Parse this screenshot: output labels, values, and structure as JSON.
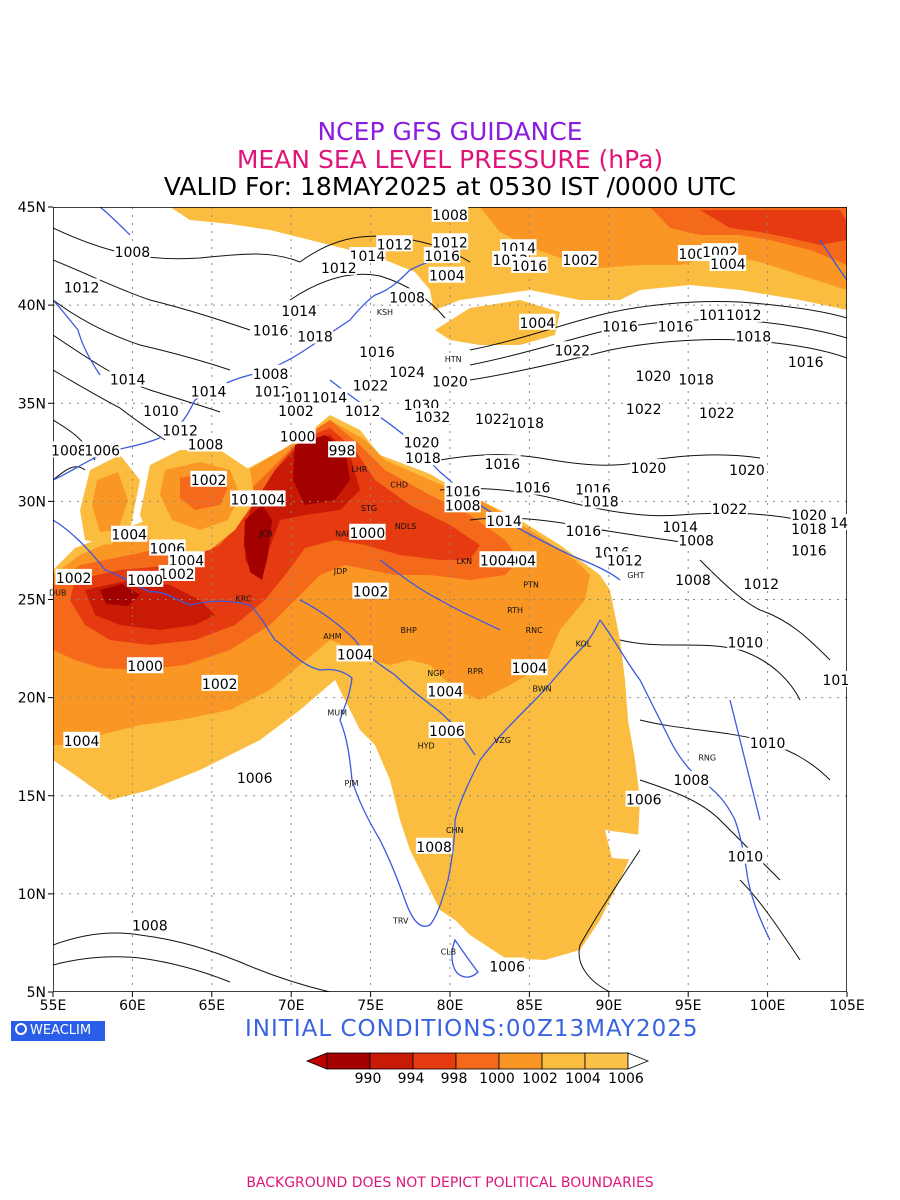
{
  "header": {
    "line1": "NCEP GFS GUIDANCE",
    "line2": "MEAN SEA LEVEL PRESSURE (hPa)",
    "line3": "VALID For: 18MAY2025 at 0530 IST /0000 UTC"
  },
  "axes": {
    "lon_labels": [
      "55E",
      "60E",
      "65E",
      "70E",
      "75E",
      "80E",
      "85E",
      "90E",
      "95E",
      "100E",
      "105E"
    ],
    "lat_labels": [
      "45N",
      "40N",
      "35N",
      "30N",
      "25N",
      "20N",
      "15N",
      "10N",
      "5N"
    ],
    "lon_range": [
      55,
      105
    ],
    "lat_range": [
      5,
      45
    ],
    "grid": true
  },
  "colors": {
    "p990": "#a30000",
    "p994": "#c81a05",
    "p998": "#e63a10",
    "p1000": "#f56a1a",
    "p1002": "#fa9624",
    "p1004": "#fbbd3f",
    "above": "#ffffff",
    "coast": "#3a5ae0"
  },
  "legend": {
    "labels": [
      "990",
      "994",
      "998",
      "1000",
      "1002",
      "1004",
      "1006"
    ]
  },
  "cities": [
    {
      "name": "DUB",
      "lon": 55.3,
      "lat": 25.2
    },
    {
      "name": "KRC",
      "lon": 67.0,
      "lat": 24.9
    },
    {
      "name": "JCB",
      "lon": 68.4,
      "lat": 28.2
    },
    {
      "name": "SRG",
      "lon": 73.5,
      "lat": 32.3
    },
    {
      "name": "LHR",
      "lon": 74.3,
      "lat": 31.5
    },
    {
      "name": "STG",
      "lon": 74.9,
      "lat": 29.5
    },
    {
      "name": "NAI",
      "lon": 73.2,
      "lat": 28.2
    },
    {
      "name": "NDLS",
      "lon": 77.2,
      "lat": 28.6
    },
    {
      "name": "CHD",
      "lon": 76.8,
      "lat": 30.7
    },
    {
      "name": "JDP",
      "lon": 73.1,
      "lat": 26.3
    },
    {
      "name": "AHM",
      "lon": 72.6,
      "lat": 23.0
    },
    {
      "name": "BHP",
      "lon": 77.4,
      "lat": 23.3
    },
    {
      "name": "LKN",
      "lon": 80.9,
      "lat": 26.8
    },
    {
      "name": "PTN",
      "lon": 85.1,
      "lat": 25.6
    },
    {
      "name": "RTH",
      "lon": 84.1,
      "lat": 24.3
    },
    {
      "name": "RNC",
      "lon": 85.3,
      "lat": 23.3
    },
    {
      "name": "KOL",
      "lon": 88.4,
      "lat": 22.6
    },
    {
      "name": "NGP",
      "lon": 79.1,
      "lat": 21.1
    },
    {
      "name": "RPR",
      "lon": 81.6,
      "lat": 21.2
    },
    {
      "name": "BWN",
      "lon": 85.8,
      "lat": 20.3
    },
    {
      "name": "MUM",
      "lon": 72.9,
      "lat": 19.1
    },
    {
      "name": "HYD",
      "lon": 78.5,
      "lat": 17.4
    },
    {
      "name": "VZG",
      "lon": 83.3,
      "lat": 17.7
    },
    {
      "name": "PJM",
      "lon": 73.8,
      "lat": 15.5
    },
    {
      "name": "CHN",
      "lon": 80.3,
      "lat": 13.1
    },
    {
      "name": "TRV",
      "lon": 76.9,
      "lat": 8.5
    },
    {
      "name": "CLB",
      "lon": 79.9,
      "lat": 6.9
    },
    {
      "name": "GHT",
      "lon": 91.7,
      "lat": 26.1
    },
    {
      "name": "HTN",
      "lon": 80.2,
      "lat": 37.1
    },
    {
      "name": "KSH",
      "lon": 75.9,
      "lat": 39.5
    },
    {
      "name": "RNG",
      "lon": 96.2,
      "lat": 16.8
    }
  ],
  "contour_labels": [
    {
      "v": "1008",
      "lon": 80.0,
      "lat": 44.6
    },
    {
      "v": "1008",
      "lon": 60.0,
      "lat": 42.7
    },
    {
      "v": "1012",
      "lon": 56.8,
      "lat": 40.9
    },
    {
      "v": "1014",
      "lon": 74.8,
      "lat": 42.5
    },
    {
      "v": "1012",
      "lon": 76.5,
      "lat": 43.1
    },
    {
      "v": "1012",
      "lon": 73.0,
      "lat": 41.9
    },
    {
      "v": "1016",
      "lon": 79.5,
      "lat": 42.5
    },
    {
      "v": "1012",
      "lon": 80.0,
      "lat": 43.2
    },
    {
      "v": "1014",
      "lon": 84.3,
      "lat": 42.9
    },
    {
      "v": "1012",
      "lon": 83.8,
      "lat": 42.3
    },
    {
      "v": "1016",
      "lon": 85.0,
      "lat": 42.0
    },
    {
      "v": "1004",
      "lon": 79.8,
      "lat": 41.5
    },
    {
      "v": "1008",
      "lon": 77.3,
      "lat": 40.4
    },
    {
      "v": "1002",
      "lon": 88.2,
      "lat": 42.3
    },
    {
      "v": "1004",
      "lon": 95.5,
      "lat": 42.6
    },
    {
      "v": "1002",
      "lon": 97.0,
      "lat": 42.7
    },
    {
      "v": "1004",
      "lon": 97.5,
      "lat": 42.1
    },
    {
      "v": "1004",
      "lon": 85.5,
      "lat": 39.1
    },
    {
      "v": "1016",
      "lon": 90.7,
      "lat": 38.9
    },
    {
      "v": "1016",
      "lon": 94.2,
      "lat": 38.9
    },
    {
      "v": "1014",
      "lon": 96.8,
      "lat": 39.5
    },
    {
      "v": "1012",
      "lon": 98.5,
      "lat": 39.5
    },
    {
      "v": "1018",
      "lon": 99.1,
      "lat": 38.4
    },
    {
      "v": "1016",
      "lon": 102.4,
      "lat": 37.1
    },
    {
      "v": "1014",
      "lon": 70.5,
      "lat": 39.7
    },
    {
      "v": "1016",
      "lon": 68.7,
      "lat": 38.7
    },
    {
      "v": "1018",
      "lon": 71.5,
      "lat": 38.4
    },
    {
      "v": "1016",
      "lon": 75.4,
      "lat": 37.6
    },
    {
      "v": "1022",
      "lon": 87.7,
      "lat": 37.7
    },
    {
      "v": "1020",
      "lon": 92.8,
      "lat": 36.4
    },
    {
      "v": "1018",
      "lon": 95.5,
      "lat": 36.2
    },
    {
      "v": "1014",
      "lon": 59.7,
      "lat": 36.2
    },
    {
      "v": "1008",
      "lon": 68.7,
      "lat": 36.5
    },
    {
      "v": "1014",
      "lon": 64.8,
      "lat": 35.6
    },
    {
      "v": "1012",
      "lon": 68.8,
      "lat": 35.6
    },
    {
      "v": "1016",
      "lon": 70.7,
      "lat": 35.3
    },
    {
      "v": "1014",
      "lon": 72.4,
      "lat": 35.3
    },
    {
      "v": "1022",
      "lon": 75.0,
      "lat": 35.9
    },
    {
      "v": "1024",
      "lon": 77.3,
      "lat": 36.6
    },
    {
      "v": "1020",
      "lon": 80.0,
      "lat": 36.1
    },
    {
      "v": "1010",
      "lon": 61.8,
      "lat": 34.6
    },
    {
      "v": "1002",
      "lon": 70.3,
      "lat": 34.6
    },
    {
      "v": "1012",
      "lon": 74.5,
      "lat": 34.6
    },
    {
      "v": "1030",
      "lon": 78.2,
      "lat": 34.9
    },
    {
      "v": "1032",
      "lon": 78.9,
      "lat": 34.3
    },
    {
      "v": "1022",
      "lon": 82.7,
      "lat": 34.2
    },
    {
      "v": "1018",
      "lon": 84.8,
      "lat": 34.0
    },
    {
      "v": "1022",
      "lon": 92.2,
      "lat": 34.7
    },
    {
      "v": "1022",
      "lon": 96.8,
      "lat": 34.5
    },
    {
      "v": "1012",
      "lon": 63.0,
      "lat": 33.6
    },
    {
      "v": "1008",
      "lon": 64.6,
      "lat": 32.9
    },
    {
      "v": "1000",
      "lon": 70.4,
      "lat": 33.3
    },
    {
      "v": "1020",
      "lon": 78.2,
      "lat": 33.0
    },
    {
      "v": "1008",
      "lon": 56.0,
      "lat": 32.6
    },
    {
      "v": "1006",
      "lon": 58.1,
      "lat": 32.6
    },
    {
      "v": "998",
      "lon": 73.2,
      "lat": 32.6
    },
    {
      "v": "1018",
      "lon": 78.3,
      "lat": 32.2
    },
    {
      "v": "1016",
      "lon": 83.3,
      "lat": 31.9
    },
    {
      "v": "1020",
      "lon": 92.5,
      "lat": 31.7
    },
    {
      "v": "1020",
      "lon": 98.7,
      "lat": 31.6
    },
    {
      "v": "1016",
      "lon": 85.2,
      "lat": 30.7
    },
    {
      "v": "1002",
      "lon": 64.8,
      "lat": 31.1
    },
    {
      "v": "1016",
      "lon": 80.8,
      "lat": 30.5
    },
    {
      "v": "1016",
      "lon": 89.0,
      "lat": 30.6
    },
    {
      "v": "1018",
      "lon": 89.5,
      "lat": 30.0
    },
    {
      "v": "1006",
      "lon": 67.3,
      "lat": 30.1
    },
    {
      "v": "1004",
      "lon": 68.5,
      "lat": 30.1
    },
    {
      "v": "1008",
      "lon": 80.8,
      "lat": 29.8
    },
    {
      "v": "1022",
      "lon": 97.6,
      "lat": 29.6
    },
    {
      "v": "1020",
      "lon": 102.6,
      "lat": 29.3
    },
    {
      "v": "1014",
      "lon": 83.4,
      "lat": 29.0
    },
    {
      "v": "1014",
      "lon": 94.5,
      "lat": 28.7
    },
    {
      "v": "1018",
      "lon": 102.6,
      "lat": 28.6
    },
    {
      "v": "14",
      "lon": 104.5,
      "lat": 28.9
    },
    {
      "v": "1016",
      "lon": 88.4,
      "lat": 28.5
    },
    {
      "v": "1000",
      "lon": 74.8,
      "lat": 28.4
    },
    {
      "v": "1004",
      "lon": 59.8,
      "lat": 28.3
    },
    {
      "v": "1008",
      "lon": 95.5,
      "lat": 28.0
    },
    {
      "v": "1016",
      "lon": 102.6,
      "lat": 27.5
    },
    {
      "v": "1006",
      "lon": 62.2,
      "lat": 27.6
    },
    {
      "v": "1004",
      "lon": 63.4,
      "lat": 27.0
    },
    {
      "v": "1016",
      "lon": 90.2,
      "lat": 27.4
    },
    {
      "v": "1012",
      "lon": 91.0,
      "lat": 27.0
    },
    {
      "v": "1004",
      "lon": 84.3,
      "lat": 27.0
    },
    {
      "v": "1004",
      "lon": 83.0,
      "lat": 27.0
    },
    {
      "v": "1002",
      "lon": 62.8,
      "lat": 26.3
    },
    {
      "v": "1002",
      "lon": 56.3,
      "lat": 26.1
    },
    {
      "v": "1000",
      "lon": 60.8,
      "lat": 26.0
    },
    {
      "v": "1008",
      "lon": 95.3,
      "lat": 26.0
    },
    {
      "v": "1012",
      "lon": 99.6,
      "lat": 25.8
    },
    {
      "v": "1002",
      "lon": 75.0,
      "lat": 25.4
    },
    {
      "v": "1004",
      "lon": 74.0,
      "lat": 22.2
    },
    {
      "v": "1010",
      "lon": 98.6,
      "lat": 22.8
    },
    {
      "v": "1000",
      "lon": 60.8,
      "lat": 21.6
    },
    {
      "v": "1004",
      "lon": 85.0,
      "lat": 21.5
    },
    {
      "v": "1002",
      "lon": 65.5,
      "lat": 20.7
    },
    {
      "v": "1004",
      "lon": 79.7,
      "lat": 20.3
    },
    {
      "v": "101",
      "lon": 104.3,
      "lat": 20.9
    },
    {
      "v": "1006",
      "lon": 79.8,
      "lat": 18.3
    },
    {
      "v": "1004",
      "lon": 56.8,
      "lat": 17.8
    },
    {
      "v": "1010",
      "lon": 100.0,
      "lat": 17.7
    },
    {
      "v": "1006",
      "lon": 67.7,
      "lat": 15.9
    },
    {
      "v": "1008",
      "lon": 95.2,
      "lat": 15.8
    },
    {
      "v": "1006",
      "lon": 92.2,
      "lat": 14.8
    },
    {
      "v": "1008",
      "lon": 79.0,
      "lat": 12.4
    },
    {
      "v": "1010",
      "lon": 98.6,
      "lat": 11.9
    },
    {
      "v": "1008",
      "lon": 61.1,
      "lat": 8.4
    },
    {
      "v": "1006",
      "lon": 83.6,
      "lat": 6.3
    }
  ],
  "initial_conditions": "INITIAL CONDITIONS:00Z13MAY2025",
  "logo": "WEACLIM",
  "footer": "BACKGROUND DOES NOT DEPICT POLITICAL BOUNDARIES"
}
